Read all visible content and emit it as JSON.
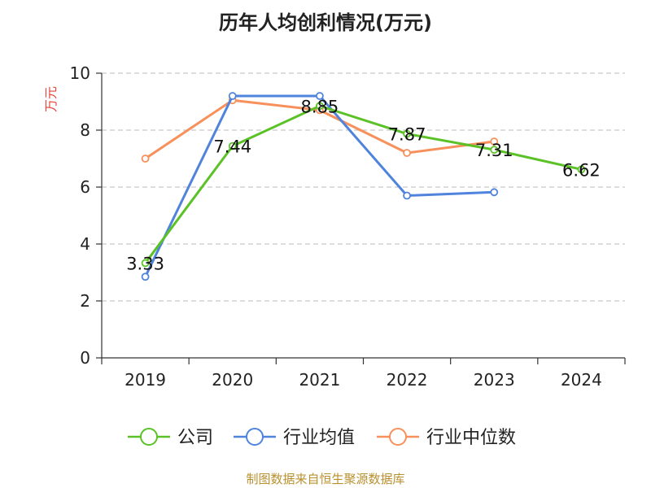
{
  "chart_data": {
    "type": "line",
    "title": "历年人均创利情况(万元)",
    "ylabel": "万元",
    "xlabel": "",
    "categories": [
      "2019",
      "2020",
      "2021",
      "2022",
      "2023",
      "2024"
    ],
    "ylim": [
      0,
      10
    ],
    "yticks": [
      0,
      2,
      4,
      6,
      8,
      10
    ],
    "grid": true,
    "legend_position": "bottom",
    "series": [
      {
        "name": "公司",
        "color": "#5ac226",
        "values": [
          3.33,
          7.44,
          8.85,
          7.87,
          7.31,
          6.62
        ],
        "labels": [
          "3.33",
          "7.44",
          "8.85",
          "7.87",
          "7.31",
          "6.62"
        ]
      },
      {
        "name": "行业均值",
        "color": "#4f83dc",
        "values": [
          2.85,
          9.2,
          9.2,
          5.7,
          5.82,
          null
        ]
      },
      {
        "name": "行业中位数",
        "color": "#f7905a",
        "values": [
          7.0,
          9.05,
          8.7,
          7.2,
          7.6,
          null
        ]
      }
    ]
  },
  "source": "制图数据来自恒生聚源数据库"
}
